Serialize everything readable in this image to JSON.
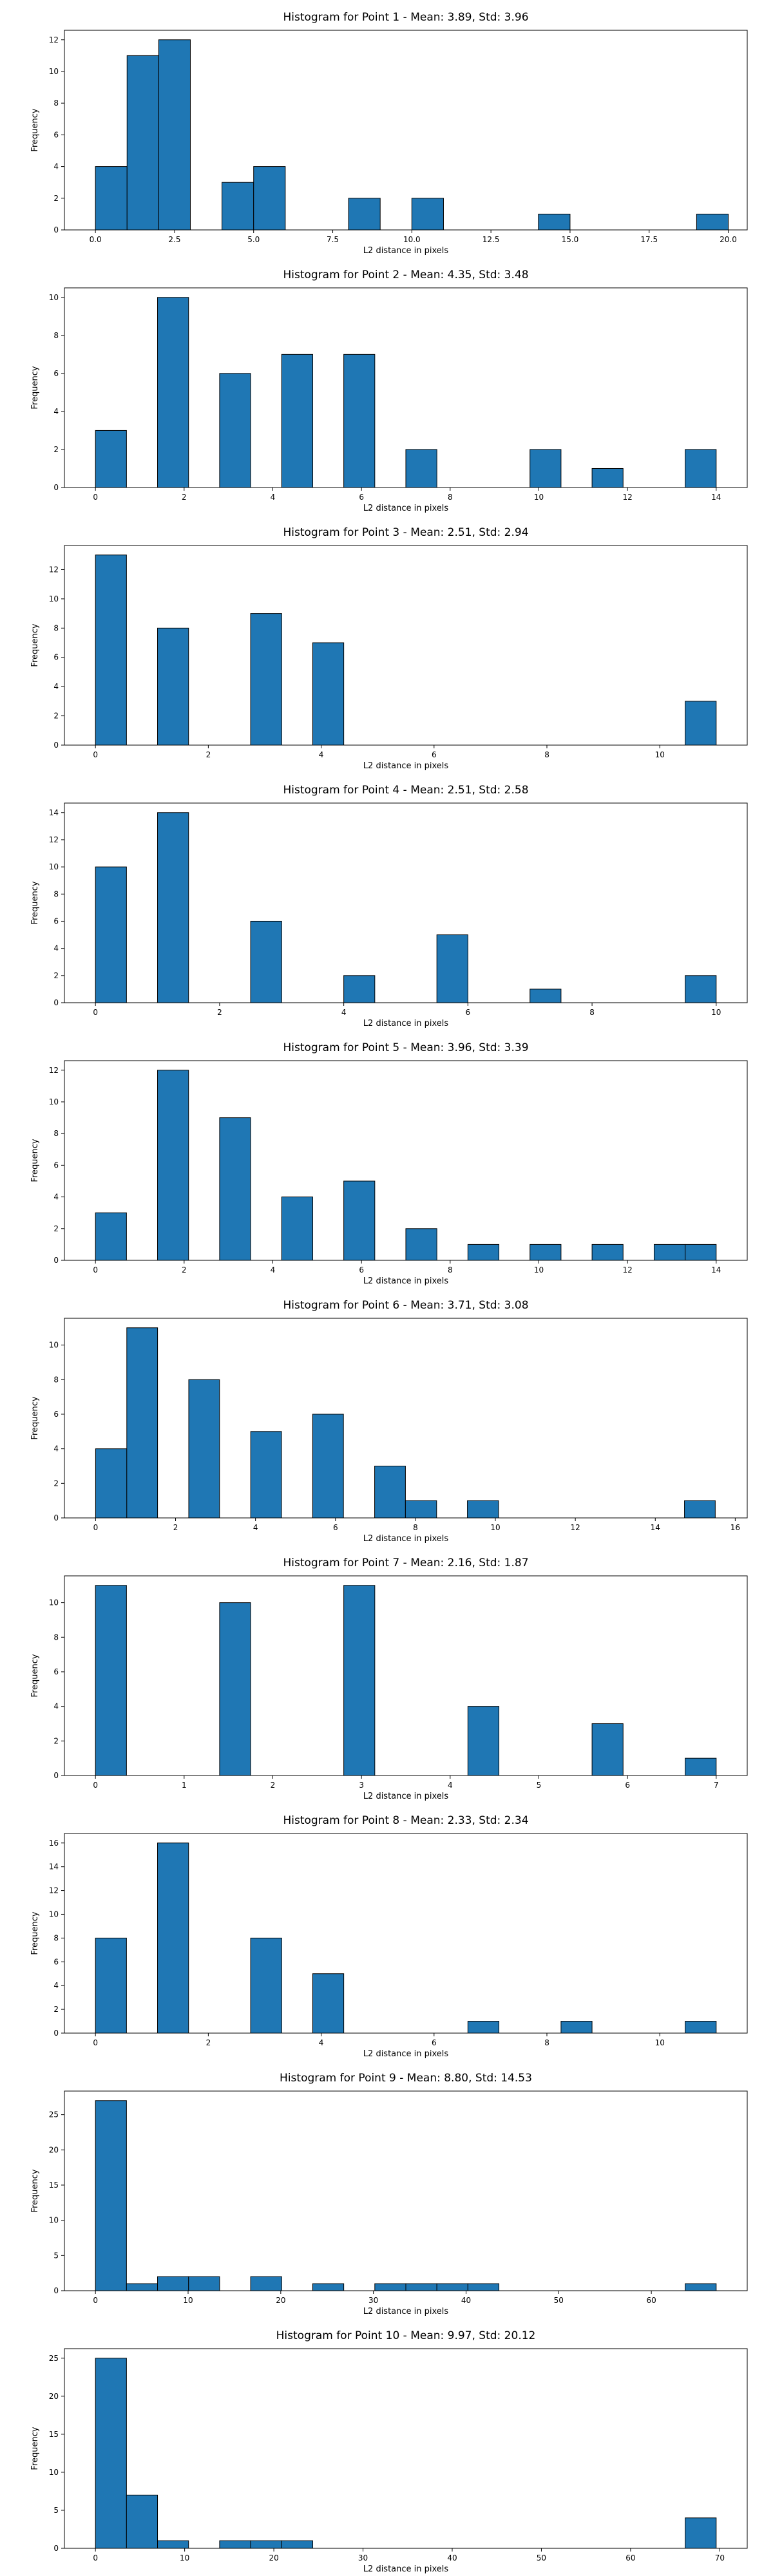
{
  "chart_data": [
    {
      "type": "bar",
      "title": "Histogram for Point 1 - Mean: 3.89, Std: 3.96",
      "xlabel": "L2 distance in pixels",
      "ylabel": "Frequency",
      "xlim": [
        -0.98,
        20.6
      ],
      "ylim": [
        0,
        12.6
      ],
      "xticks": [
        0.0,
        2.5,
        5.0,
        7.5,
        10.0,
        12.5,
        15.0,
        17.5,
        20.0
      ],
      "xtick_labels": [
        "0.0",
        "2.5",
        "5.0",
        "7.5",
        "10.0",
        "12.5",
        "15.0",
        "17.5",
        "20.0"
      ],
      "yticks": [
        0,
        2,
        4,
        6,
        8,
        10,
        12
      ],
      "bars": [
        {
          "x0": 0.0,
          "x1": 1.0,
          "count": 4
        },
        {
          "x0": 1.0,
          "x1": 2.0,
          "count": 11
        },
        {
          "x0": 2.0,
          "x1": 3.0,
          "count": 12
        },
        {
          "x0": 4.0,
          "x1": 5.0,
          "count": 3
        },
        {
          "x0": 5.0,
          "x1": 6.0,
          "count": 4
        },
        {
          "x0": 8.0,
          "x1": 9.0,
          "count": 2
        },
        {
          "x0": 10.0,
          "x1": 11.0,
          "count": 2
        },
        {
          "x0": 14.0,
          "x1": 15.0,
          "count": 1
        },
        {
          "x0": 19.0,
          "x1": 20.0,
          "count": 1
        }
      ]
    },
    {
      "type": "bar",
      "title": "Histogram for Point 2 - Mean: 4.35, Std: 3.48",
      "xlabel": "L2 distance in pixels",
      "ylabel": "Frequency",
      "xlim": [
        -0.7,
        14.7
      ],
      "ylim": [
        0,
        10.5
      ],
      "xticks": [
        0,
        2,
        4,
        6,
        8,
        10,
        12,
        14
      ],
      "xtick_labels": [
        "0",
        "2",
        "4",
        "6",
        "8",
        "10",
        "12",
        "14"
      ],
      "yticks": [
        0,
        2,
        4,
        6,
        8,
        10
      ],
      "bars": [
        {
          "x0": 0.0,
          "x1": 0.7,
          "count": 3
        },
        {
          "x0": 1.4,
          "x1": 2.1,
          "count": 10
        },
        {
          "x0": 2.8,
          "x1": 3.5,
          "count": 6
        },
        {
          "x0": 4.2,
          "x1": 4.9,
          "count": 7
        },
        {
          "x0": 5.6,
          "x1": 6.3,
          "count": 7
        },
        {
          "x0": 7.0,
          "x1": 7.7,
          "count": 2
        },
        {
          "x0": 9.8,
          "x1": 10.5,
          "count": 2
        },
        {
          "x0": 11.2,
          "x1": 11.9,
          "count": 1
        },
        {
          "x0": 13.3,
          "x1": 14.0,
          "count": 2
        }
      ]
    },
    {
      "type": "bar",
      "title": "Histogram for Point 3 - Mean: 2.51, Std: 2.94",
      "xlabel": "L2 distance in pixels",
      "ylabel": "Frequency",
      "xlim": [
        -0.55,
        11.55
      ],
      "ylim": [
        0,
        13.65
      ],
      "xticks": [
        0,
        2,
        4,
        6,
        8,
        10
      ],
      "xtick_labels": [
        "0",
        "2",
        "4",
        "6",
        "8",
        "10"
      ],
      "yticks": [
        0,
        2,
        4,
        6,
        8,
        10,
        12
      ],
      "bars": [
        {
          "x0": 0.0,
          "x1": 0.55,
          "count": 13
        },
        {
          "x0": 1.1,
          "x1": 1.65,
          "count": 8
        },
        {
          "x0": 2.75,
          "x1": 3.3,
          "count": 9
        },
        {
          "x0": 3.85,
          "x1": 4.4,
          "count": 7
        },
        {
          "x0": 10.45,
          "x1": 11.0,
          "count": 3
        }
      ]
    },
    {
      "type": "bar",
      "title": "Histogram for Point 4 - Mean: 2.51, Std: 2.58",
      "xlabel": "L2 distance in pixels",
      "ylabel": "Frequency",
      "xlim": [
        -0.5,
        10.5
      ],
      "ylim": [
        0,
        14.7
      ],
      "xticks": [
        0,
        2,
        4,
        6,
        8,
        10
      ],
      "xtick_labels": [
        "0",
        "2",
        "4",
        "6",
        "8",
        "10"
      ],
      "yticks": [
        0,
        2,
        4,
        6,
        8,
        10,
        12,
        14
      ],
      "bars": [
        {
          "x0": 0.0,
          "x1": 0.5,
          "count": 10
        },
        {
          "x0": 1.0,
          "x1": 1.5,
          "count": 14
        },
        {
          "x0": 2.5,
          "x1": 3.0,
          "count": 6
        },
        {
          "x0": 4.0,
          "x1": 4.5,
          "count": 2
        },
        {
          "x0": 5.5,
          "x1": 6.0,
          "count": 5
        },
        {
          "x0": 7.0,
          "x1": 7.5,
          "count": 1
        },
        {
          "x0": 9.5,
          "x1": 10.0,
          "count": 2
        }
      ]
    },
    {
      "type": "bar",
      "title": "Histogram for Point 5 - Mean: 3.96, Std: 3.39",
      "xlabel": "L2 distance in pixels",
      "ylabel": "Frequency",
      "xlim": [
        -0.7,
        14.7
      ],
      "ylim": [
        0,
        12.6
      ],
      "xticks": [
        0,
        2,
        4,
        6,
        8,
        10,
        12,
        14
      ],
      "xtick_labels": [
        "0",
        "2",
        "4",
        "6",
        "8",
        "10",
        "12",
        "14"
      ],
      "yticks": [
        0,
        2,
        4,
        6,
        8,
        10,
        12
      ],
      "bars": [
        {
          "x0": 0.0,
          "x1": 0.7,
          "count": 3
        },
        {
          "x0": 1.4,
          "x1": 2.1,
          "count": 12
        },
        {
          "x0": 2.8,
          "x1": 3.5,
          "count": 9
        },
        {
          "x0": 4.2,
          "x1": 4.9,
          "count": 4
        },
        {
          "x0": 5.6,
          "x1": 6.3,
          "count": 5
        },
        {
          "x0": 7.0,
          "x1": 7.7,
          "count": 2
        },
        {
          "x0": 8.4,
          "x1": 9.1,
          "count": 1
        },
        {
          "x0": 9.8,
          "x1": 10.5,
          "count": 1
        },
        {
          "x0": 11.2,
          "x1": 11.9,
          "count": 1
        },
        {
          "x0": 12.6,
          "x1": 13.3,
          "count": 1
        },
        {
          "x0": 13.3,
          "x1": 14.0,
          "count": 1
        }
      ]
    },
    {
      "type": "bar",
      "title": "Histogram for Point 6 - Mean: 3.71, Std: 3.08",
      "xlabel": "L2 distance in pixels",
      "ylabel": "Frequency",
      "xlim": [
        -0.78,
        16.3
      ],
      "ylim": [
        0,
        11.55
      ],
      "xticks": [
        0,
        2,
        4,
        6,
        8,
        10,
        12,
        14,
        16
      ],
      "xtick_labels": [
        "0",
        "2",
        "4",
        "6",
        "8",
        "10",
        "12",
        "14",
        "16"
      ],
      "yticks": [
        0,
        2,
        4,
        6,
        8,
        10
      ],
      "bars": [
        {
          "x0": 0.0,
          "x1": 0.78,
          "count": 4
        },
        {
          "x0": 0.78,
          "x1": 1.55,
          "count": 11
        },
        {
          "x0": 2.33,
          "x1": 3.1,
          "count": 8
        },
        {
          "x0": 3.88,
          "x1": 4.65,
          "count": 5
        },
        {
          "x0": 5.43,
          "x1": 6.2,
          "count": 6
        },
        {
          "x0": 6.98,
          "x1": 7.75,
          "count": 3
        },
        {
          "x0": 7.75,
          "x1": 8.53,
          "count": 1
        },
        {
          "x0": 9.3,
          "x1": 10.08,
          "count": 1
        },
        {
          "x0": 14.73,
          "x1": 15.5,
          "count": 1
        }
      ]
    },
    {
      "type": "bar",
      "title": "Histogram for Point 7 - Mean: 2.16, Std: 1.87",
      "xlabel": "L2 distance in pixels",
      "ylabel": "Frequency",
      "xlim": [
        -0.35,
        7.35
      ],
      "ylim": [
        0,
        11.55
      ],
      "xticks": [
        0,
        1,
        2,
        3,
        4,
        5,
        6,
        7
      ],
      "xtick_labels": [
        "0",
        "1",
        "2",
        "3",
        "4",
        "5",
        "6",
        "7"
      ],
      "yticks": [
        0,
        2,
        4,
        6,
        8,
        10
      ],
      "bars": [
        {
          "x0": 0.0,
          "x1": 0.35,
          "count": 11
        },
        {
          "x0": 1.4,
          "x1": 1.75,
          "count": 10
        },
        {
          "x0": 2.8,
          "x1": 3.15,
          "count": 11
        },
        {
          "x0": 4.2,
          "x1": 4.55,
          "count": 4
        },
        {
          "x0": 5.6,
          "x1": 5.95,
          "count": 3
        },
        {
          "x0": 6.65,
          "x1": 7.0,
          "count": 1
        }
      ]
    },
    {
      "type": "bar",
      "title": "Histogram for Point 8 - Mean: 2.33, Std: 2.34",
      "xlabel": "L2 distance in pixels",
      "ylabel": "Frequency",
      "xlim": [
        -0.55,
        11.55
      ],
      "ylim": [
        0,
        16.8
      ],
      "xticks": [
        0,
        2,
        4,
        6,
        8,
        10
      ],
      "xtick_labels": [
        "0",
        "2",
        "4",
        "6",
        "8",
        "10"
      ],
      "yticks": [
        0,
        2,
        4,
        6,
        8,
        10,
        12,
        14,
        16
      ],
      "bars": [
        {
          "x0": 0.0,
          "x1": 0.55,
          "count": 8
        },
        {
          "x0": 1.1,
          "x1": 1.65,
          "count": 16
        },
        {
          "x0": 2.75,
          "x1": 3.3,
          "count": 8
        },
        {
          "x0": 3.85,
          "x1": 4.4,
          "count": 5
        },
        {
          "x0": 6.6,
          "x1": 7.15,
          "count": 1
        },
        {
          "x0": 8.25,
          "x1": 8.8,
          "count": 1
        },
        {
          "x0": 10.45,
          "x1": 11.0,
          "count": 1
        }
      ]
    },
    {
      "type": "bar",
      "title": "Histogram for Point 9 - Mean: 8.80, Std: 14.53",
      "xlabel": "L2 distance in pixels",
      "ylabel": "Frequency",
      "xlim": [
        -3.35,
        70.35
      ],
      "ylim": [
        0,
        28.35
      ],
      "xticks": [
        0,
        10,
        20,
        30,
        40,
        50,
        60
      ],
      "xtick_labels": [
        "0",
        "10",
        "20",
        "30",
        "40",
        "50",
        "60"
      ],
      "yticks": [
        0,
        5,
        10,
        15,
        20,
        25
      ],
      "bars": [
        {
          "x0": 0.0,
          "x1": 3.35,
          "count": 27
        },
        {
          "x0": 3.35,
          "x1": 6.7,
          "count": 1
        },
        {
          "x0": 6.7,
          "x1": 10.05,
          "count": 2
        },
        {
          "x0": 10.05,
          "x1": 13.4,
          "count": 2
        },
        {
          "x0": 16.75,
          "x1": 20.1,
          "count": 2
        },
        {
          "x0": 23.45,
          "x1": 26.8,
          "count": 1
        },
        {
          "x0": 30.15,
          "x1": 33.5,
          "count": 1
        },
        {
          "x0": 33.5,
          "x1": 36.85,
          "count": 1
        },
        {
          "x0": 36.85,
          "x1": 40.2,
          "count": 1
        },
        {
          "x0": 40.2,
          "x1": 43.55,
          "count": 1
        },
        {
          "x0": 63.65,
          "x1": 67.0,
          "count": 1
        }
      ]
    },
    {
      "type": "bar",
      "title": "Histogram for Point 10 - Mean: 9.97, Std: 20.12",
      "xlabel": "L2 distance in pixels",
      "ylabel": "Frequency",
      "xlim": [
        -3.48,
        73.08
      ],
      "ylim": [
        0,
        26.25
      ],
      "xticks": [
        0,
        10,
        20,
        30,
        40,
        50,
        60,
        70
      ],
      "xtick_labels": [
        "0",
        "10",
        "20",
        "30",
        "40",
        "50",
        "60",
        "70"
      ],
      "yticks": [
        0,
        5,
        10,
        15,
        20,
        25
      ],
      "bars": [
        {
          "x0": 0.0,
          "x1": 3.48,
          "count": 25
        },
        {
          "x0": 3.48,
          "x1": 6.96,
          "count": 7
        },
        {
          "x0": 6.96,
          "x1": 10.44,
          "count": 1
        },
        {
          "x0": 13.92,
          "x1": 17.4,
          "count": 1
        },
        {
          "x0": 17.4,
          "x1": 20.88,
          "count": 1
        },
        {
          "x0": 20.88,
          "x1": 24.36,
          "count": 1
        },
        {
          "x0": 66.12,
          "x1": 69.6,
          "count": 4
        }
      ]
    }
  ]
}
